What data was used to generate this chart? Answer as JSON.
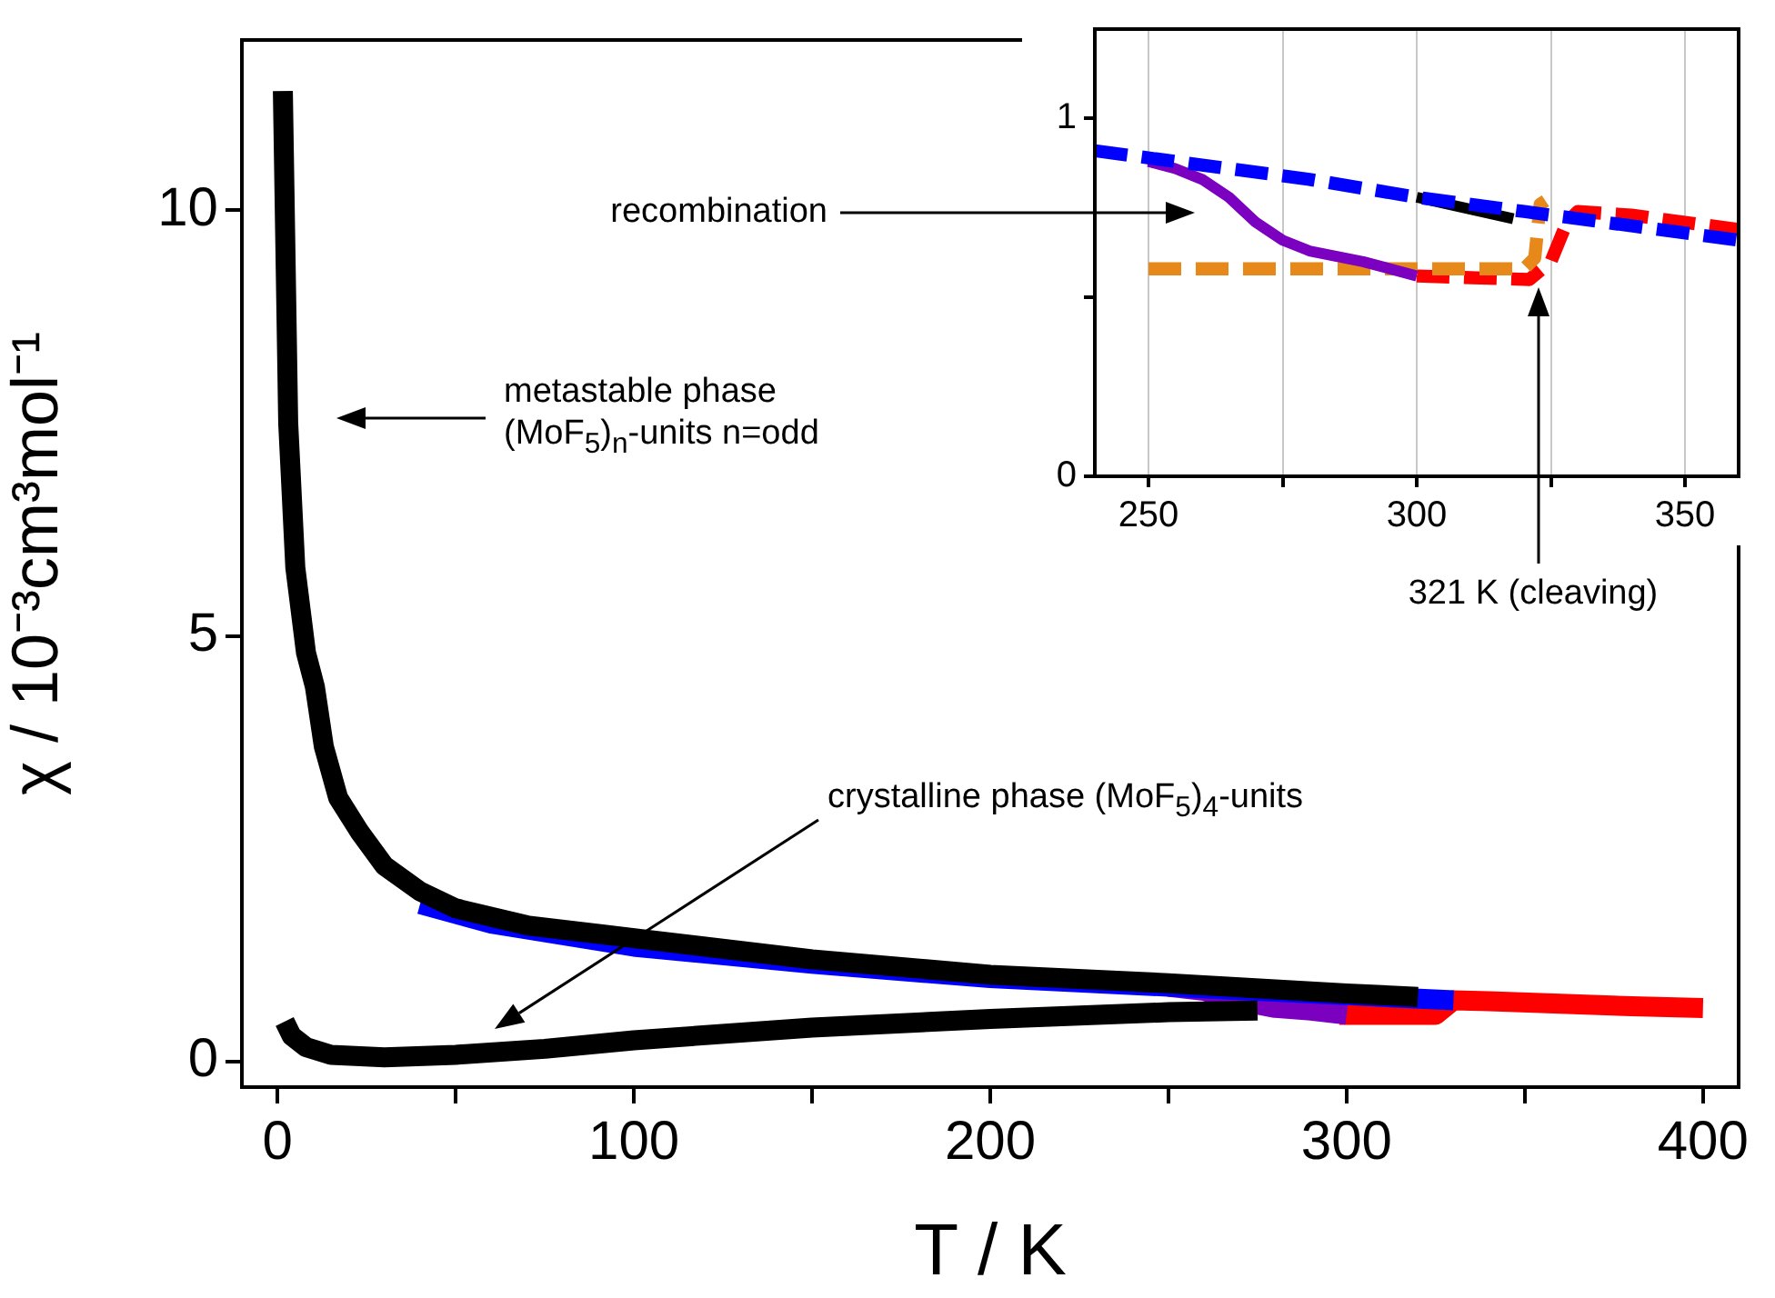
{
  "chart_data": [
    {
      "type": "line",
      "xlabel": "T / K",
      "ylabel": "χ / 10⁻³cm³mol⁻¹",
      "xlim": [
        -10,
        410
      ],
      "ylim": [
        -0.3,
        12
      ],
      "xticks": [
        0,
        {
          "value": 50,
          "label": null
        },
        100,
        {
          "value": 150,
          "label": null
        },
        200,
        {
          "value": 250,
          "label": null
        },
        300,
        {
          "value": 350,
          "label": null
        },
        400
      ],
      "yticks": [
        0,
        5,
        10
      ],
      "series": [
        {
          "color": "#000000",
          "x": [
            1.5,
            3,
            5,
            8,
            10.5,
            13,
            17,
            23,
            30,
            40,
            50,
            70,
            100,
            150,
            200,
            250,
            300,
            320
          ],
          "values": [
            11.4,
            7.5,
            5.8,
            4.8,
            4.4,
            3.7,
            3.1,
            2.7,
            2.3,
            2.0,
            1.8,
            1.6,
            1.45,
            1.2,
            1.02,
            0.92,
            0.8,
            0.76
          ]
        },
        {
          "color": "#000000",
          "x": [
            2,
            4,
            8,
            15,
            30,
            50,
            75,
            100,
            150,
            200,
            250,
            275
          ],
          "values": [
            0.47,
            0.3,
            0.17,
            0.08,
            0.05,
            0.08,
            0.15,
            0.25,
            0.4,
            0.5,
            0.58,
            0.6
          ]
        },
        {
          "color": "#0000ff",
          "x": [
            40,
            60,
            100,
            150,
            200,
            250,
            300,
            330
          ],
          "values": [
            1.85,
            1.62,
            1.35,
            1.15,
            0.98,
            0.88,
            0.78,
            0.72
          ]
        },
        {
          "color": "#7b00bf",
          "x": [
            250,
            260,
            270,
            280,
            290,
            300
          ],
          "values": [
            0.88,
            0.83,
            0.71,
            0.63,
            0.6,
            0.55
          ]
        },
        {
          "color": "#ff0000",
          "x": [
            298,
            325,
            330,
            340,
            360,
            380,
            400
          ],
          "values": [
            0.55,
            0.55,
            0.72,
            0.71,
            0.68,
            0.65,
            0.63
          ]
        }
      ],
      "annotations": [
        "metastable phase (MoF$_{5}$)$_{n}$-units n=odd",
        "crystalline phase (MoF$_{5}$)$_{4}$-units"
      ]
    },
    {
      "type": "line",
      "xlim": [
        240,
        360
      ],
      "ylim": [
        0,
        1.25
      ],
      "grid": "x",
      "xticks": [
        250,
        {
          "value": 275,
          "label": null
        },
        300,
        {
          "value": 325,
          "label": null
        },
        350
      ],
      "yticks": [
        0,
        {
          "value": 0.5,
          "label": null
        },
        1
      ],
      "series": [
        {
          "color": "#0000ff",
          "line_style": "dashed",
          "x": [
            240,
            260,
            280,
            300,
            320,
            340,
            360
          ],
          "values": [
            0.91,
            0.87,
            0.83,
            0.78,
            0.74,
            0.7,
            0.66
          ]
        },
        {
          "color": "#000000",
          "x": [
            300,
            318
          ],
          "values": [
            0.78,
            0.72
          ]
        },
        {
          "color": "#7b00bf",
          "x": [
            250,
            255,
            260,
            265,
            270,
            275,
            280,
            290,
            300
          ],
          "values": [
            0.88,
            0.86,
            0.83,
            0.78,
            0.71,
            0.66,
            0.63,
            0.6,
            0.56
          ]
        },
        {
          "color": "#e6891a",
          "line_style": "dashed",
          "x": [
            250,
            280,
            300,
            320,
            322,
            323,
            324
          ],
          "values": [
            0.58,
            0.58,
            0.58,
            0.58,
            0.61,
            0.76,
            0.77
          ]
        },
        {
          "color": "#ff0000",
          "line_style": "dashed",
          "x": [
            300,
            321,
            325,
            328,
            330,
            340,
            360
          ],
          "values": [
            0.56,
            0.55,
            0.6,
            0.71,
            0.74,
            0.73,
            0.69
          ]
        }
      ],
      "annotations": [
        "recombination",
        "321 K (cleaving)"
      ]
    }
  ]
}
